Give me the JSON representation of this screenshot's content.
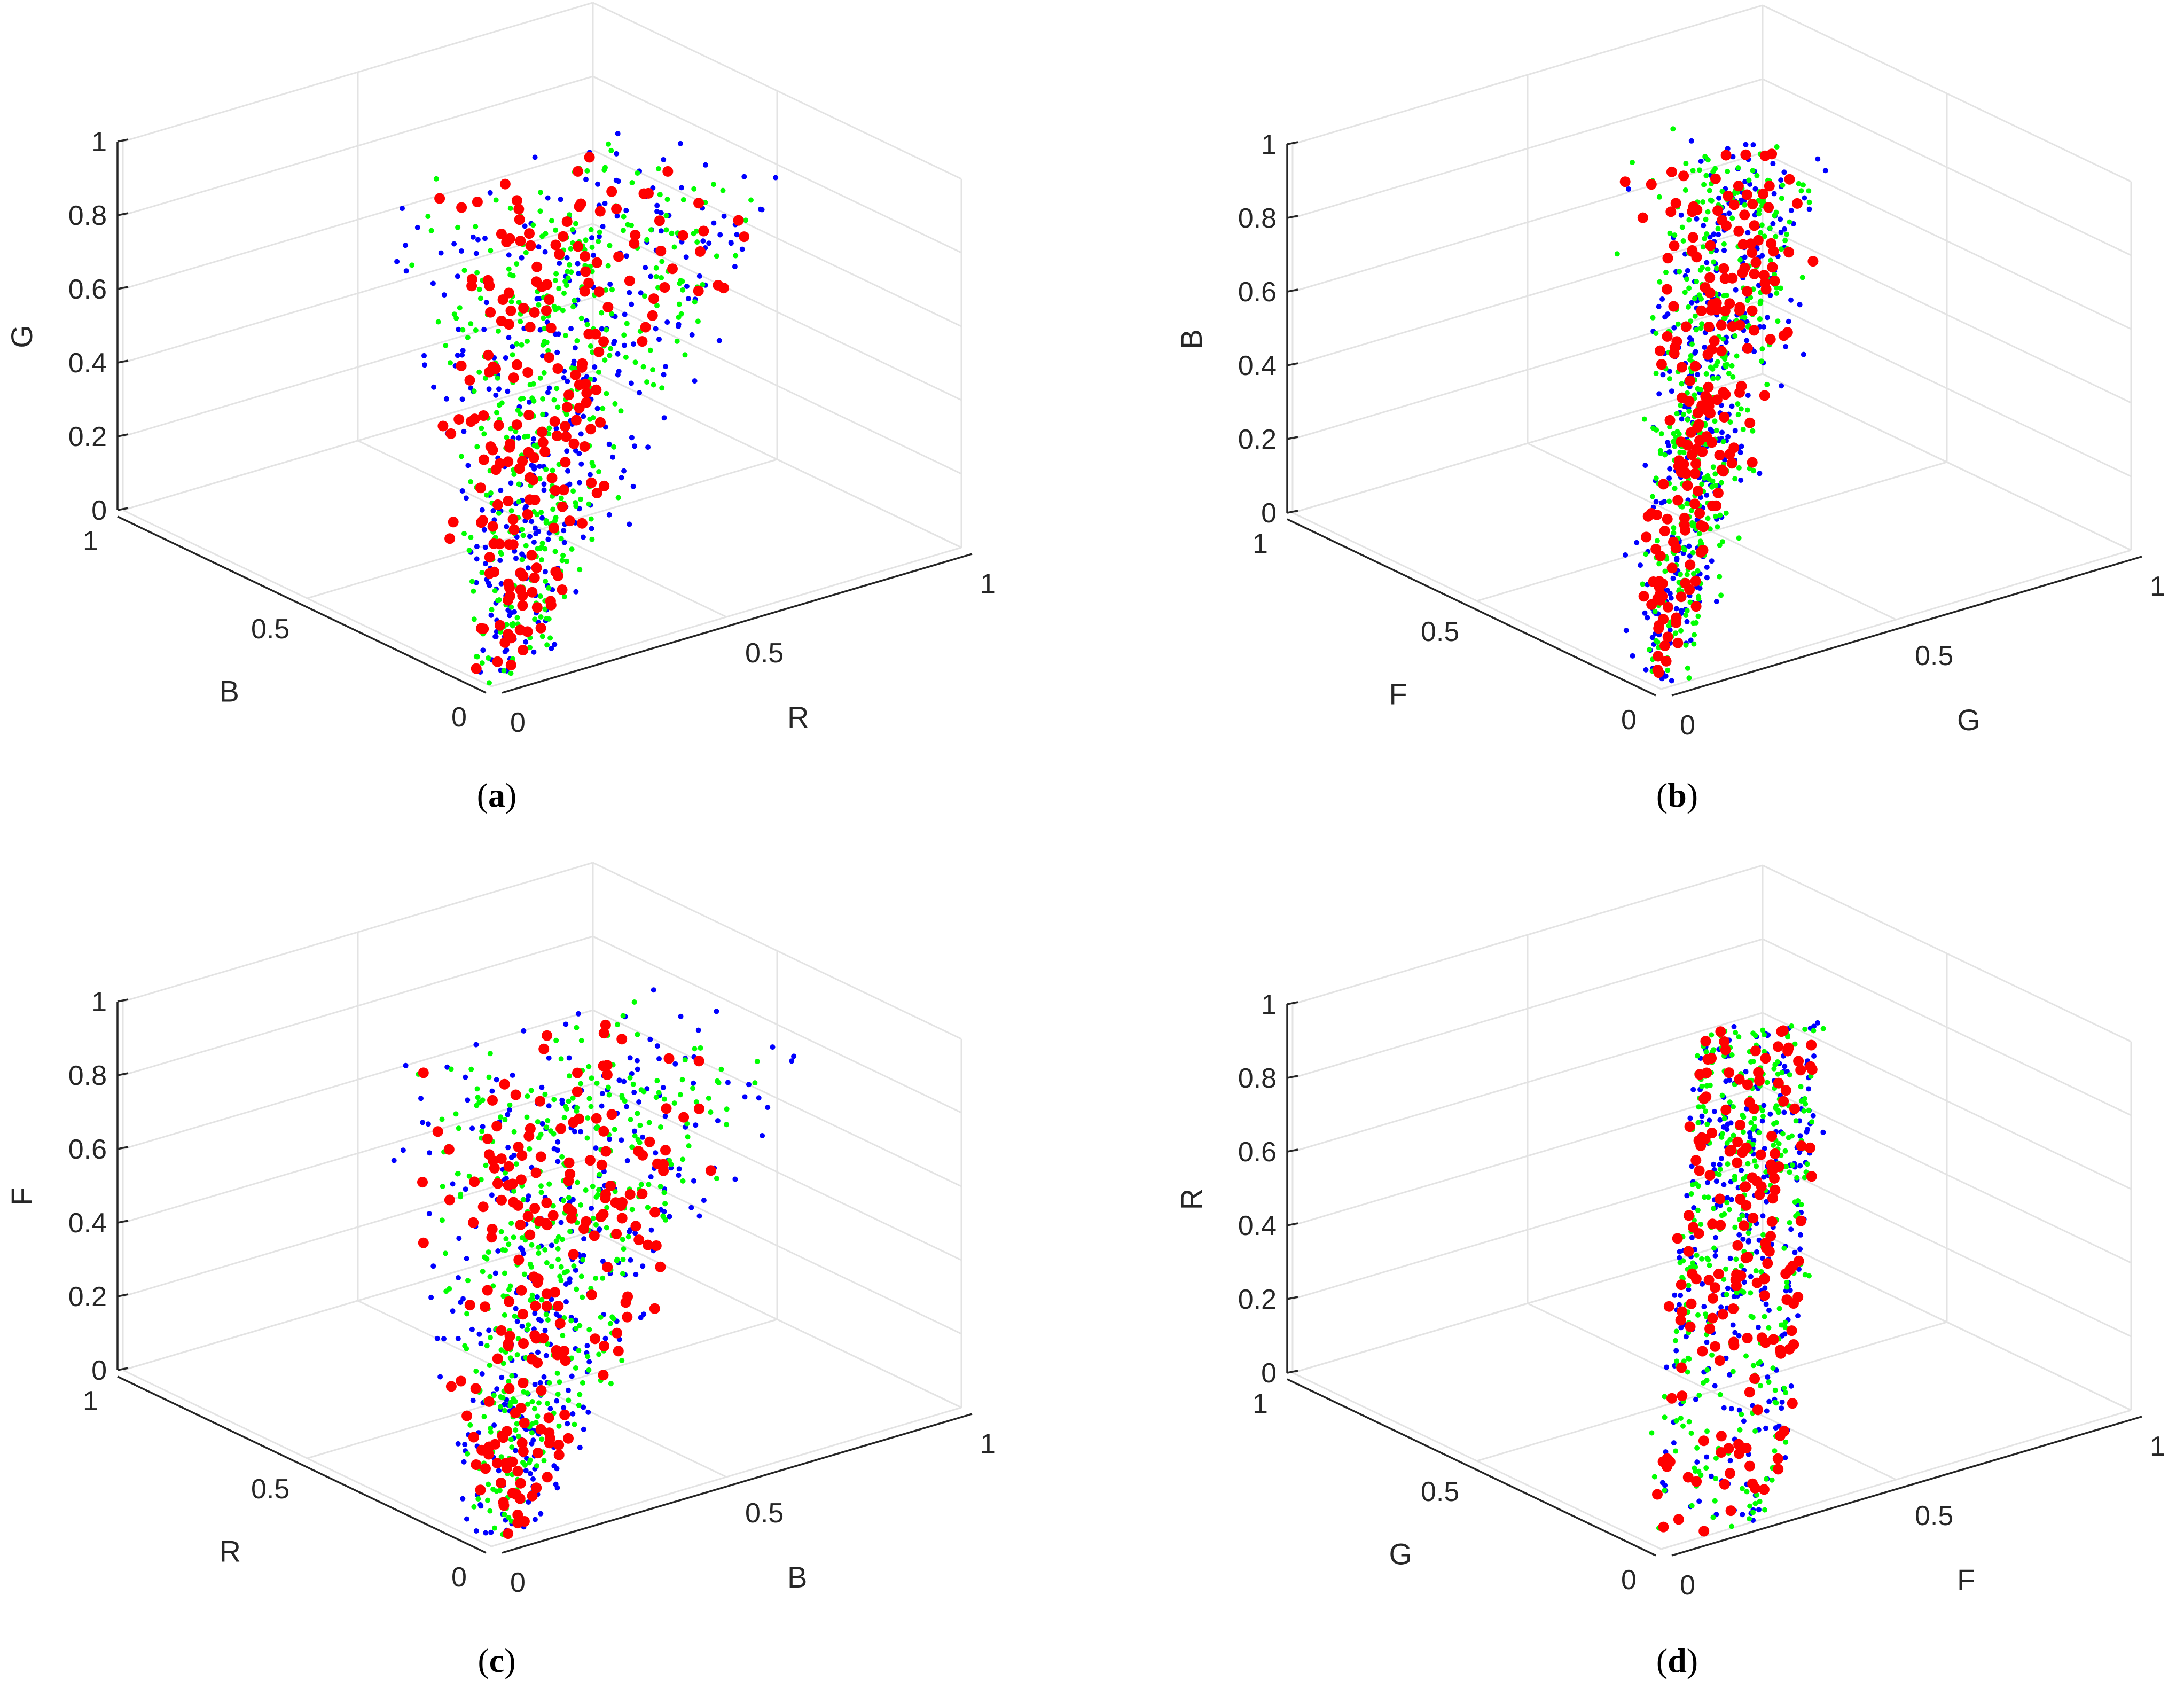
{
  "figure": {
    "marker_colors": {
      "red": "#ff0000",
      "green": "#00ff00",
      "blue": "#0000ff"
    },
    "grid_color": "#e3e3e3",
    "axis_color": "#262626"
  },
  "chart_data": [
    {
      "type": "scatter",
      "panel": "a",
      "caption_open": "(",
      "caption_letter": "a",
      "caption_close": ")",
      "xlabel": "R",
      "ylabel": "B",
      "zlabel": "G",
      "xlim": [
        0,
        1
      ],
      "ylim": [
        0,
        1
      ],
      "zlim": [
        0,
        1
      ],
      "x_ticks": [
        "0",
        "0.5",
        "1"
      ],
      "y_ticks": [
        "0",
        "0.5",
        "1"
      ],
      "z_ticks": [
        "0",
        "0.2",
        "0.4",
        "0.6",
        "0.8",
        "1"
      ],
      "grid": true,
      "series": [
        {
          "name": "blue",
          "color": "#0000ff",
          "marker_size": "small",
          "count": 340,
          "distribution": "broad cone from origin, widest spread in R"
        },
        {
          "name": "green",
          "color": "#00ff00",
          "marker_size": "small",
          "count": 420,
          "distribution": "central band along G axis"
        },
        {
          "name": "red",
          "color": "#ff0000",
          "marker_size": "large",
          "count": 200,
          "distribution": "scattered across volume, clustered near origin and top"
        }
      ]
    },
    {
      "type": "scatter",
      "panel": "b",
      "caption_open": "(",
      "caption_letter": "b",
      "caption_close": ")",
      "xlabel": "G",
      "ylabel": "F",
      "zlabel": "B",
      "xlim": [
        0,
        1
      ],
      "ylim": [
        0,
        1
      ],
      "zlim": [
        0,
        1
      ],
      "x_ticks": [
        "0",
        "0.5",
        "1"
      ],
      "y_ticks": [
        "0",
        "0.5",
        "1"
      ],
      "z_ticks": [
        "0",
        "0.2",
        "0.4",
        "0.6",
        "0.8",
        "1"
      ],
      "grid": true,
      "series": [
        {
          "name": "blue",
          "color": "#0000ff",
          "marker_size": "small",
          "count": 340,
          "distribution": "narrow elongated column rising with G"
        },
        {
          "name": "green",
          "color": "#00ff00",
          "marker_size": "small",
          "count": 420,
          "distribution": "narrow elongated column rising with G"
        },
        {
          "name": "red",
          "color": "#ff0000",
          "marker_size": "large",
          "count": 200,
          "distribution": "along column, dense near top"
        }
      ]
    },
    {
      "type": "scatter",
      "panel": "c",
      "caption_open": "(",
      "caption_letter": "c",
      "caption_close": ")",
      "xlabel": "B",
      "ylabel": "R",
      "zlabel": "F",
      "xlim": [
        0,
        1
      ],
      "ylim": [
        0,
        1
      ],
      "zlim": [
        0,
        1
      ],
      "x_ticks": [
        "0",
        "0.5",
        "1"
      ],
      "y_ticks": [
        "0",
        "0.5",
        "1"
      ],
      "z_ticks": [
        "0",
        "0.2",
        "0.4",
        "0.6",
        "0.8",
        "1"
      ],
      "grid": true,
      "series": [
        {
          "name": "blue",
          "color": "#0000ff",
          "marker_size": "small",
          "count": 340,
          "distribution": "wide cone from origin"
        },
        {
          "name": "green",
          "color": "#00ff00",
          "marker_size": "small",
          "count": 420,
          "distribution": "broad cloud across F"
        },
        {
          "name": "red",
          "color": "#ff0000",
          "marker_size": "large",
          "count": 200,
          "distribution": "scattered, cluster near origin"
        }
      ]
    },
    {
      "type": "scatter",
      "panel": "d",
      "caption_open": "(",
      "caption_letter": "d",
      "caption_close": ")",
      "xlabel": "F",
      "ylabel": "G",
      "zlabel": "R",
      "xlim": [
        0,
        1
      ],
      "ylim": [
        0,
        1
      ],
      "zlim": [
        0,
        1
      ],
      "x_ticks": [
        "0",
        "0.5",
        "1"
      ],
      "y_ticks": [
        "0",
        "0.5",
        "1"
      ],
      "z_ticks": [
        "0",
        "0.2",
        "0.4",
        "0.6",
        "0.8",
        "1"
      ],
      "grid": true,
      "series": [
        {
          "name": "blue",
          "color": "#0000ff",
          "marker_size": "small",
          "count": 300,
          "distribution": "thin diagonal streaks rising with F"
        },
        {
          "name": "green",
          "color": "#00ff00",
          "marker_size": "small",
          "count": 360,
          "distribution": "thin diagonal streaks rising with F"
        },
        {
          "name": "red",
          "color": "#ff0000",
          "marker_size": "large",
          "count": 170,
          "distribution": "along streaks"
        }
      ]
    }
  ]
}
